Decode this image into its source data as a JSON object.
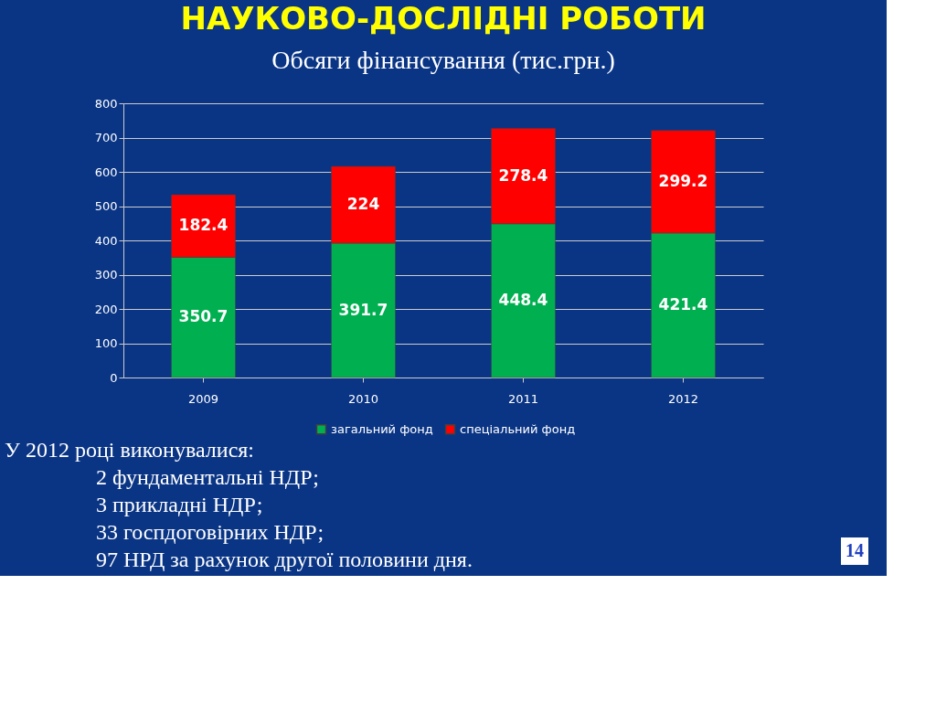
{
  "chart_data": {
    "type": "bar",
    "title": "НАУКОВО-ДОСЛІДНІ РОБОТИ",
    "subtitle": "Обсяги фінансування (тис.грн.)",
    "categories": [
      "2009",
      "2010",
      "2011",
      "2012"
    ],
    "series": [
      {
        "name": "загальний фонд",
        "color": "#00b050",
        "values": [
          350.7,
          391.7,
          448.4,
          421.4
        ]
      },
      {
        "name": "спеціальний фонд",
        "color": "#ff0000",
        "values": [
          182.4,
          224,
          278.4,
          299.2
        ]
      }
    ],
    "stacked": true,
    "data_labels": true,
    "ylim": [
      0,
      800
    ],
    "yticks": [
      0,
      100,
      200,
      300,
      400,
      500,
      600,
      700,
      800
    ],
    "grid": "y",
    "legend": "bottom",
    "annotations": [
      "У 2012 році виконувалися:",
      "2 фундаментальні НДР;",
      "3 прикладні НДР;",
      "33 госпдоговірних НДР;",
      "97 НРД за рахунок другої половини дня.",
      "14"
    ]
  }
}
